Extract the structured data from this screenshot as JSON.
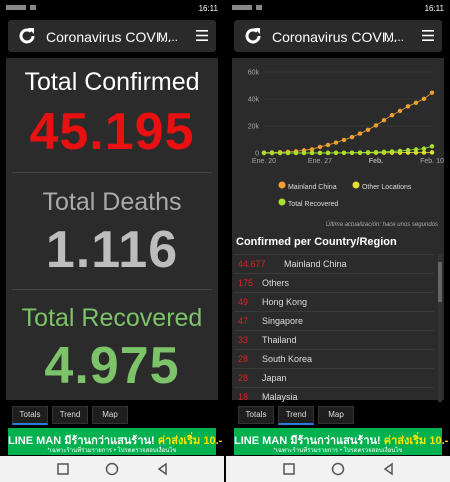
{
  "status": {
    "time": "16:11"
  },
  "header": {
    "title": "Coronavirus COVI...",
    "menu_short": "M..."
  },
  "totals": {
    "confirmed": {
      "label": "Total Confirmed",
      "value": "45.195"
    },
    "deaths": {
      "label": "Total Deaths",
      "value": "1.116"
    },
    "recovered": {
      "label": "Total Recovered",
      "value": "4.975"
    }
  },
  "tabs": [
    "Totals",
    "Trend",
    "Map"
  ],
  "ad": {
    "text": "LINE MAN มีร้านกว่าแสนร้าน!",
    "highlight": "ค่าส่งเริ่ม 10.-",
    "note": "*เฉพาะร้านที่ร่วมรายการ • โปรดตรวจสอบเงื่อนไข"
  },
  "trend_chart": {
    "type": "line",
    "categories": [
      "Ene. 20",
      null,
      null,
      null,
      null,
      null,
      null,
      "Ene. 27",
      null,
      null,
      null,
      null,
      null,
      null,
      "Feb.",
      null,
      null,
      null,
      null,
      null,
      null,
      "Feb. 10"
    ],
    "series": [
      {
        "name": "Mainland China",
        "color": "#f0a030",
        "values": [
          278,
          440,
          571,
          830,
          1287,
          1975,
          2744,
          4515,
          5974,
          7711,
          9692,
          11791,
          14380,
          17205,
          20438,
          24324,
          28018,
          31161,
          34546,
          37198,
          40171,
          44677
        ]
      },
      {
        "name": "Other Locations",
        "color": "#e6e030",
        "values": [
          4,
          6,
          8,
          14,
          25,
          40,
          57,
          64,
          87,
          105,
          118,
          153,
          173,
          183,
          188,
          212,
          227,
          265,
          317,
          343,
          361,
          457
        ]
      },
      {
        "name": "Total Recovered",
        "color": "#a8e030",
        "values": [
          0,
          0,
          0,
          34,
          38,
          49,
          51,
          60,
          103,
          124,
          171,
          243,
          328,
          475,
          632,
          892,
          1152,
          1542,
          2052,
          2616,
          3244,
          4975
        ]
      }
    ],
    "ylim": [
      0,
      60000
    ],
    "yticks": [
      0,
      {
        "value": 20000,
        "label": "20k"
      },
      {
        "value": 40000,
        "label": "40k"
      },
      {
        "value": 60000,
        "label": "60k"
      }
    ],
    "grid": true,
    "update_note": "Última actualización: hace unos segundos"
  },
  "table": {
    "title": "Confirmed per Country/Region",
    "rows": [
      [
        "44.677",
        "Mainland China"
      ],
      [
        "175",
        "Others"
      ],
      [
        "49",
        "Hong Kong"
      ],
      [
        "47",
        "Singapore"
      ],
      [
        "33",
        "Thailand"
      ],
      [
        "28",
        "South Korea"
      ],
      [
        "28",
        "Japan"
      ],
      [
        "18",
        "Malaysia"
      ]
    ]
  }
}
